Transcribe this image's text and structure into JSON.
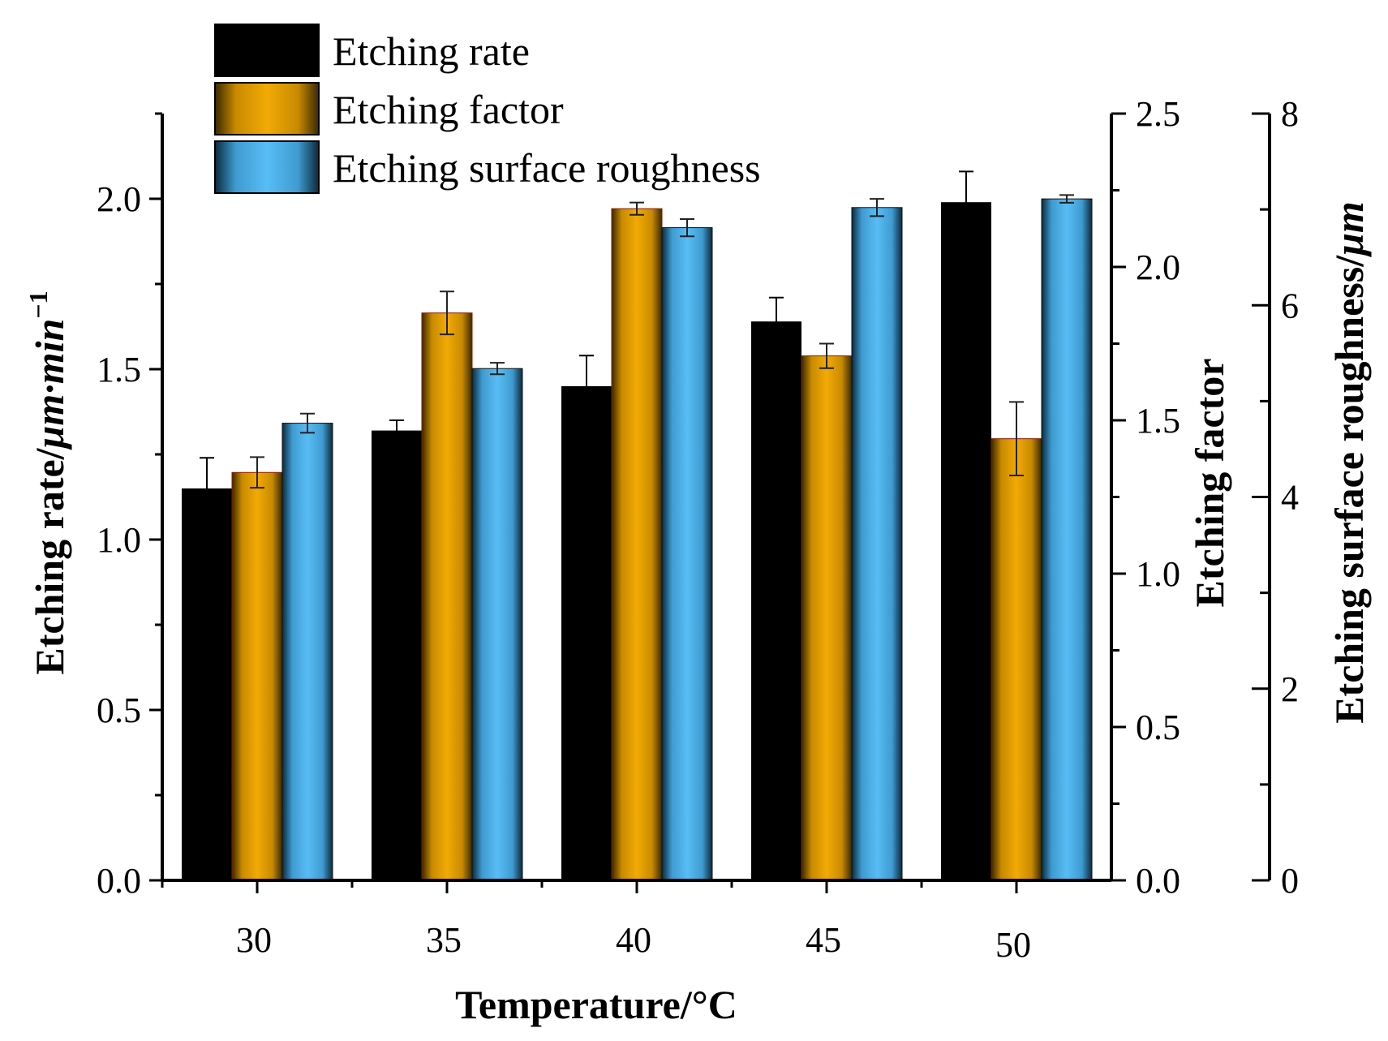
{
  "chart_data": {
    "type": "bar",
    "title": "",
    "xlabel": "Temperature/°C",
    "categories": [
      "30",
      "35",
      "40",
      "45",
      "50"
    ],
    "axes": {
      "left": {
        "label_prefix": "Etching rate/",
        "label_unit": "μm·min",
        "label_sup": "−1",
        "range": [
          0,
          2.25
        ],
        "ticks": [
          "0.0",
          "0.5",
          "1.0",
          "1.5",
          "2.0"
        ]
      },
      "right1": {
        "label": "Etching factor",
        "range": [
          0,
          2.5
        ],
        "ticks": [
          "0.0",
          "0.5",
          "1.0",
          "1.5",
          "2.0",
          "2.5"
        ]
      },
      "right2": {
        "label_prefix": "Etching surface roughness/",
        "label_unit": "μm",
        "range": [
          0,
          8
        ],
        "ticks": [
          "0",
          "2",
          "4",
          "6",
          "8"
        ]
      }
    },
    "series": [
      {
        "name": "Etching rate",
        "axis": "left",
        "color": "#000000",
        "values": [
          1.15,
          1.32,
          1.45,
          1.64,
          1.99
        ],
        "errors": [
          0.09,
          0.03,
          0.09,
          0.07,
          0.09
        ]
      },
      {
        "name": "Etching factor",
        "axis": "right1",
        "color": "#E8A406",
        "values": [
          1.33,
          1.85,
          2.19,
          1.71,
          1.44
        ],
        "errors": [
          0.05,
          0.07,
          0.02,
          0.04,
          0.12
        ]
      },
      {
        "name": "Etching surface roughness",
        "axis": "right2",
        "color": "#4FB3EC",
        "values": [
          4.77,
          5.34,
          6.81,
          7.02,
          7.11
        ],
        "errors": [
          0.1,
          0.06,
          0.09,
          0.09,
          0.04
        ]
      }
    ],
    "legend": "top-left"
  }
}
